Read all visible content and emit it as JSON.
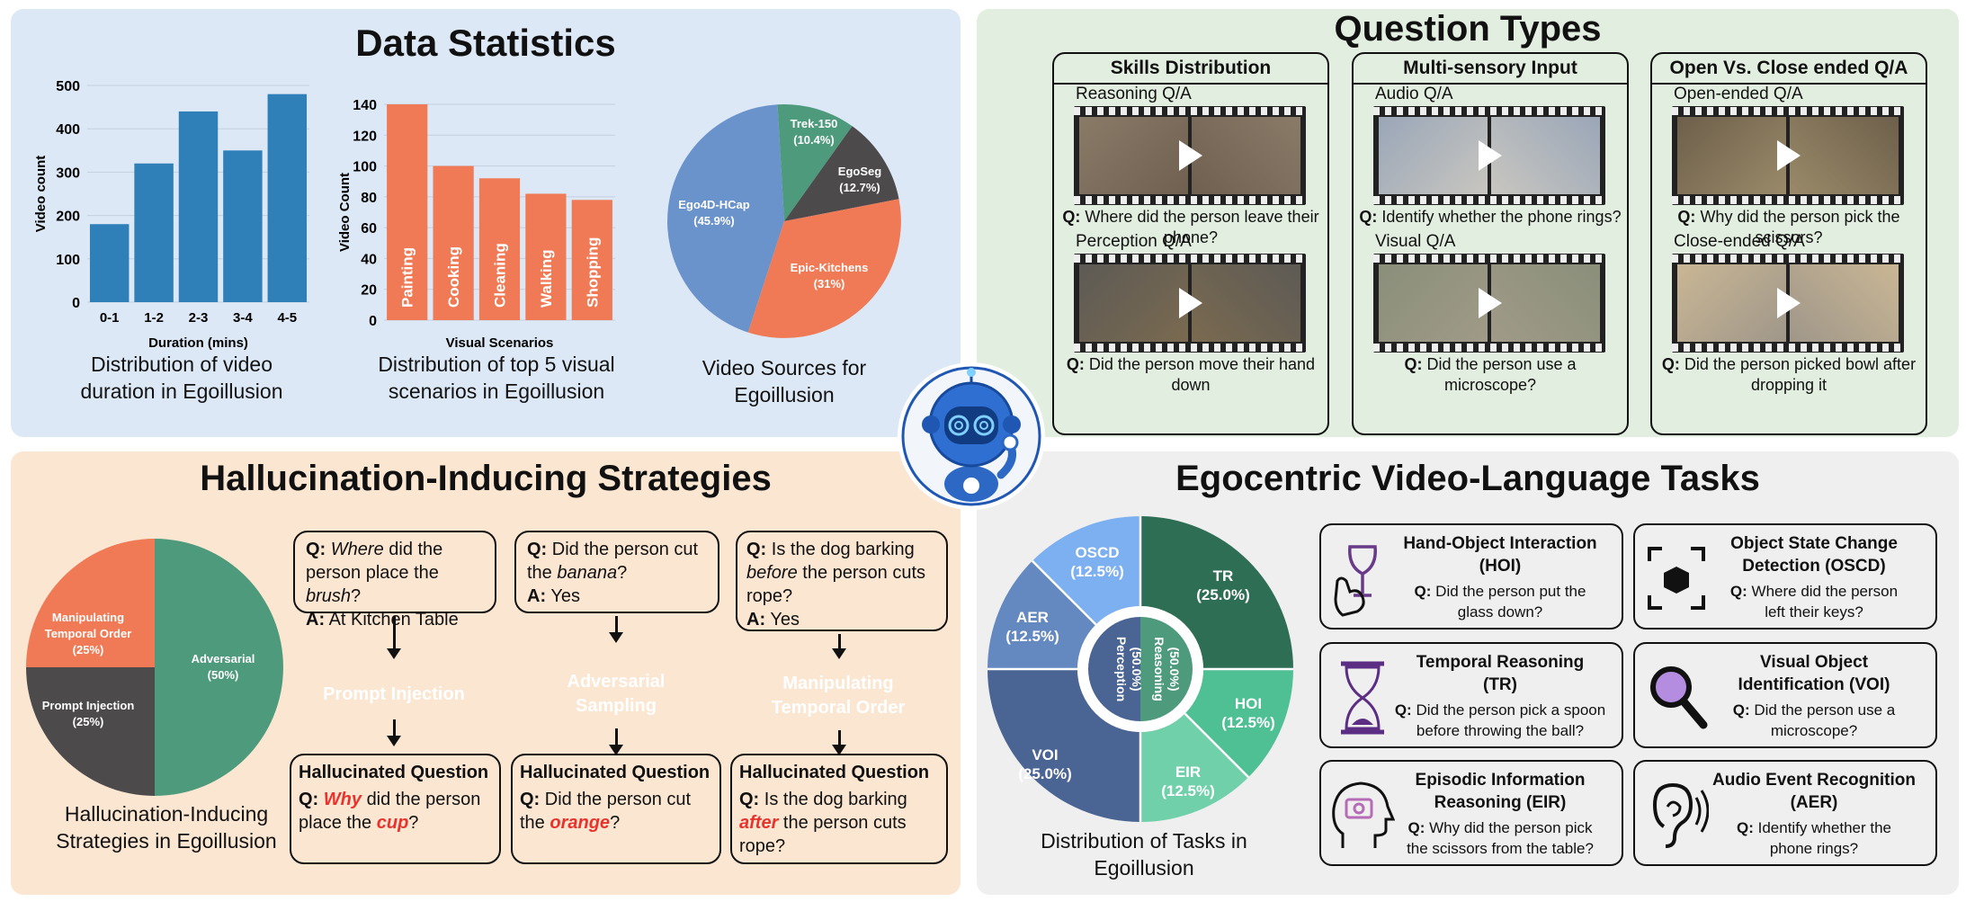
{
  "stats": {
    "title": "Data Statistics",
    "bar1": {
      "type": "bar",
      "categories": [
        "0-1",
        "1-2",
        "2-3",
        "3-4",
        "4-5"
      ],
      "values": [
        180,
        320,
        440,
        350,
        480
      ],
      "ylim": [
        0,
        500
      ],
      "yticks": [
        0,
        100,
        200,
        300,
        400,
        500
      ],
      "xlabel": "Duration (mins)",
      "ylabel": "Video count",
      "color": "#2f80b8"
    },
    "bar1_caption": [
      "Distribution of video",
      "duration in Egoillusion"
    ],
    "bar2": {
      "type": "bar",
      "categories": [
        "Painting",
        "Cooking",
        "Cleaning",
        "Walking",
        "Shopping"
      ],
      "values": [
        140,
        100,
        92,
        82,
        78
      ],
      "ylim": [
        0,
        140
      ],
      "yticks": [
        0,
        20,
        40,
        60,
        80,
        100,
        120,
        140
      ],
      "xlabel": "Visual Scenarios",
      "ylabel": "Video Count",
      "color": "#f07a55"
    },
    "bar2_caption": [
      "Distribution of top 5 visual",
      "scenarios in Egoillusion"
    ],
    "pie_caption": [
      "Video Sources for",
      "Egoillusion"
    ]
  },
  "chart_data": [
    {
      "type": "bar",
      "categories": [
        "0-1",
        "1-2",
        "2-3",
        "3-4",
        "4-5"
      ],
      "values": [
        180,
        320,
        440,
        350,
        480
      ],
      "xlabel": "Duration (mins)",
      "ylabel": "Video count",
      "ylim": [
        0,
        500
      ]
    },
    {
      "type": "bar",
      "categories": [
        "Painting",
        "Cooking",
        "Cleaning",
        "Walking",
        "Shopping"
      ],
      "values": [
        140,
        100,
        92,
        82,
        78
      ],
      "xlabel": "Visual Scenarios",
      "ylabel": "Video Count",
      "ylim": [
        0,
        140
      ]
    },
    {
      "type": "pie",
      "labels": [
        "Ego4D-HCap",
        "Trek-150",
        "EgoSeg",
        "Epic-Kitchens"
      ],
      "values": [
        45.9,
        10.4,
        12.7,
        31
      ],
      "value_labels": [
        "(45.9%)",
        "(10.4%)",
        "(12.7%)",
        "(31%)"
      ],
      "colors": [
        "#6b93cb",
        "#4e9a7c",
        "#4d4a4c",
        "#f07a55"
      ]
    },
    {
      "type": "pie",
      "labels": [
        "Adversarial Sampling",
        "Prompt Injection",
        "Manipulating Temporal Order"
      ],
      "values": [
        50,
        25,
        25
      ],
      "value_labels": [
        "(50%)",
        "(25%)",
        "(25%)"
      ],
      "colors": [
        "#4e9a7c",
        "#4d4a4c",
        "#f07a55"
      ]
    },
    {
      "type": "pie",
      "subtype": "sunburst",
      "inner": {
        "labels": [
          "Reasoning",
          "Perception"
        ],
        "values": [
          50,
          50
        ],
        "value_labels": [
          "(50.0%)",
          "(50.0%)"
        ]
      },
      "outer": {
        "labels": [
          "TR",
          "HOI",
          "EIR",
          "VOI",
          "AER",
          "OSCD"
        ],
        "values": [
          25,
          12.5,
          12.5,
          25,
          12.5,
          12.5
        ],
        "value_labels": [
          "(25.0%)",
          "(12.5%)",
          "(12.5%)",
          "(25.0%)",
          "(12.5%)",
          "(12.5%)"
        ],
        "colors": [
          "#2e6e55",
          "#4fbf94",
          "#6fd0aa",
          "#4a6593",
          "#6488c0",
          "#7db0f0"
        ]
      }
    }
  ],
  "qtypes": {
    "title": "Question Types",
    "cols": [
      {
        "header": "Skills Distribution",
        "items": [
          {
            "label": "Reasoning Q/A",
            "q": "Q:",
            "text": "Where did the person leave their phone?"
          },
          {
            "label": "Perception Q/A",
            "q": "Q:",
            "text": "Did the person move their hand down"
          }
        ]
      },
      {
        "header": "Multi-sensory Input",
        "items": [
          {
            "label": "Audio Q/A",
            "q": "Q:",
            "text": "Identify whether the phone rings?"
          },
          {
            "label": "Visual Q/A",
            "q": "Q:",
            "text": "Did the person use a microscope?"
          }
        ]
      },
      {
        "header": "Open Vs. Close ended Q/A",
        "items": [
          {
            "label": "Open-ended Q/A",
            "q": "Q:",
            "text": "Why did the person pick the scissors?"
          },
          {
            "label": "Close-ended Q/A",
            "q": "Q:",
            "text": "Did the person picked bowl after dropping it"
          }
        ]
      }
    ]
  },
  "hall": {
    "title": "Hallucination-Inducing Strategies",
    "caption": [
      "Hallucination-Inducing",
      "Strategies in Egoillusion"
    ],
    "cols": [
      {
        "q_pre": "Q:",
        "q_em": "Where",
        "q_mid": "did the person place the",
        "q_em2": "brush",
        "q_post": "?",
        "a_pre": "A:",
        "a": "At Kitchen Table",
        "strategy": "Prompt Injection",
        "strategy_color": "#4d4a4c",
        "hq_title": "Hallucinated Question",
        "hq_pre": "Q:",
        "hq_red": "Why",
        "hq_mid": "did the person place the",
        "hq_red2": "cup",
        "hq_post": "?"
      },
      {
        "q_pre": "Q:",
        "q_a": "Did the person cut the",
        "q_em": "banana",
        "q_post": "?",
        "a_pre": "A:",
        "a": "Yes",
        "strategy": "Adversarial Sampling",
        "strategy_color": "#4e9a7c",
        "hq_title": "Hallucinated Question",
        "hq_pre": "Q:",
        "hq_a": "Did the person cut the",
        "hq_red": "orange",
        "hq_post": "?"
      },
      {
        "q_pre": "Q:",
        "q_a": "Is the dog barking",
        "q_em": "before",
        "q_b": "the person cuts rope?",
        "a_pre": "A:",
        "a": "Yes",
        "strategy": "Manipulating Temporal Order",
        "strategy_color": "#f07a55",
        "hq_title": "Hallucinated Question",
        "hq_pre": "Q:",
        "hq_a": "Is the dog barking",
        "hq_red": "after",
        "hq_b": "the person cuts rope?"
      }
    ]
  },
  "tasks": {
    "title": "Egocentric Video-Language Tasks",
    "caption": [
      "Distribution of Tasks in",
      "Egoillusion"
    ],
    "cards": [
      {
        "title": [
          "Hand-Object Interaction",
          "(HOI)"
        ],
        "q": "Q:",
        "text": [
          "Did the person put the",
          "glass down?"
        ],
        "icon": "wine-glass-hand-icon"
      },
      {
        "title": [
          "Object State Change",
          "Detection (OSCD)"
        ],
        "q": "Q:",
        "text": [
          "Where did the person",
          "left their keys?"
        ],
        "icon": "object-scan-icon"
      },
      {
        "title": [
          "Temporal Reasoning",
          "(TR)"
        ],
        "q": "Q:",
        "text": [
          "Did the person pick a spoon",
          "before throwing the ball?"
        ],
        "icon": "hourglass-icon"
      },
      {
        "title": [
          "Visual Object",
          "Identification (VOI)"
        ],
        "q": "Q:",
        "text": [
          "Did the person use a",
          "microscope?"
        ],
        "icon": "magnifier-icon"
      },
      {
        "title": [
          "Episodic Information",
          "Reasoning (EIR)"
        ],
        "q": "Q:",
        "text": [
          "Why did the person pick",
          "the scissors from the table?"
        ],
        "icon": "head-camera-icon"
      },
      {
        "title": [
          "Audio Event Recognition",
          "(AER)"
        ],
        "q": "Q:",
        "text": [
          "Identify whether the",
          "phone rings?"
        ],
        "icon": "ear-sound-icon"
      }
    ]
  },
  "mascot": {
    "icon": "robot-mascot-icon"
  }
}
